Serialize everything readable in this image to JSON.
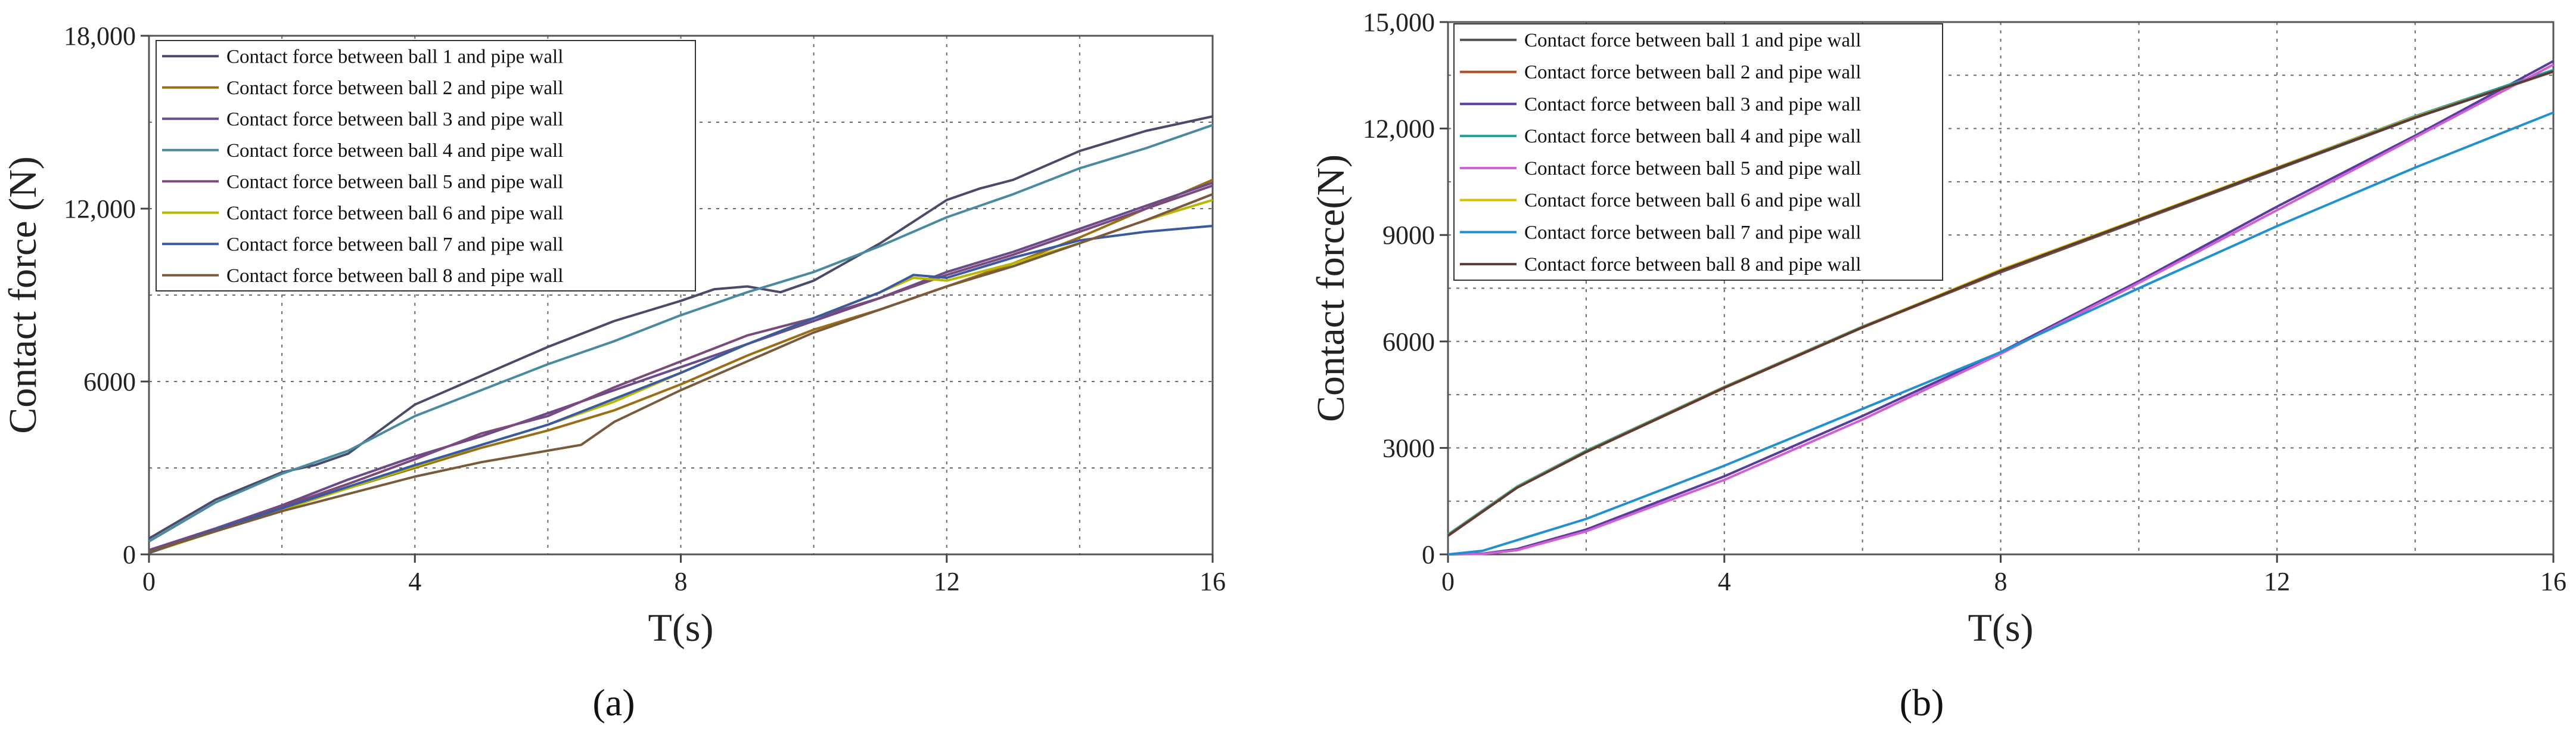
{
  "chart_data": [
    {
      "panel_label": "(a)",
      "type": "line",
      "xlabel": "T(s)",
      "ylabel": "Contact force (N)",
      "xlim": [
        0,
        16
      ],
      "ylim": [
        0,
        18000
      ],
      "xticks": [
        "0",
        "4",
        "8",
        "12",
        "16"
      ],
      "yticks": [
        "0",
        "6000",
        "12,000",
        "18,000"
      ],
      "xgrid": [
        2,
        4,
        6,
        8,
        10,
        12,
        14
      ],
      "ygrid": [
        3000,
        6000,
        9000,
        12000,
        15000
      ],
      "grid": true,
      "legend_position": "top-left",
      "series": [
        {
          "name": "Contact force between ball 1 and pipe wall",
          "color": "#4a4a6a",
          "x": [
            0,
            1,
            2,
            2.5,
            3,
            4,
            5,
            6,
            7,
            8,
            8.5,
            9,
            9.5,
            10,
            11,
            12,
            12.5,
            13,
            14,
            15,
            16
          ],
          "y": [
            550,
            1900,
            2850,
            3100,
            3500,
            5200,
            6200,
            7200,
            8100,
            8800,
            9200,
            9300,
            9100,
            9500,
            10800,
            12300,
            12700,
            13000,
            14000,
            14700,
            15200
          ]
        },
        {
          "name": "Contact force between ball 2 and pipe wall",
          "color": "#9a6e14",
          "x": [
            0,
            1,
            2,
            3,
            4,
            5,
            6,
            7,
            8,
            9,
            10,
            11,
            12,
            13,
            14,
            15,
            16
          ],
          "y": [
            100,
            850,
            1600,
            2300,
            3000,
            3700,
            4300,
            5000,
            5900,
            6900,
            7800,
            8500,
            9300,
            10100,
            11000,
            12000,
            13000
          ]
        },
        {
          "name": "Contact force between ball 3 and pipe wall",
          "color": "#6a4a8a",
          "x": [
            0,
            1,
            2,
            3,
            4,
            5,
            6,
            7,
            8,
            9,
            10,
            11,
            12,
            13,
            14,
            15,
            16
          ],
          "y": [
            150,
            900,
            1700,
            2600,
            3400,
            4100,
            4900,
            5700,
            6500,
            7300,
            8100,
            8900,
            9800,
            10500,
            11300,
            12100,
            12900
          ]
        },
        {
          "name": "Contact force between ball 4 and pipe wall",
          "color": "#4a8aa0",
          "x": [
            0,
            1,
            2,
            3,
            4,
            5,
            6,
            7,
            8,
            9,
            10,
            11,
            12,
            13,
            14,
            15,
            16
          ],
          "y": [
            450,
            1800,
            2800,
            3600,
            4800,
            5700,
            6600,
            7400,
            8300,
            9100,
            9800,
            10700,
            11700,
            12500,
            13400,
            14100,
            14900
          ]
        },
        {
          "name": "Contact force between ball 5 and pipe wall",
          "color": "#7a4a7a",
          "x": [
            0,
            1,
            2,
            3,
            4,
            5,
            6,
            7,
            8,
            9,
            10,
            11,
            12,
            13,
            14,
            15,
            16
          ],
          "y": [
            100,
            850,
            1650,
            2450,
            3300,
            4200,
            4800,
            5800,
            6700,
            7600,
            8200,
            8900,
            9700,
            10400,
            11200,
            12000,
            12800
          ]
        },
        {
          "name": "Contact force between ball 6 and pipe wall",
          "color": "#b8b800",
          "x": [
            0,
            1,
            2,
            3,
            4,
            5,
            6,
            7,
            8,
            9,
            10,
            11,
            11.5,
            12,
            13,
            14,
            15,
            16
          ],
          "y": [
            50,
            800,
            1550,
            2300,
            3050,
            3800,
            4500,
            5300,
            6300,
            7300,
            8200,
            9100,
            9600,
            9500,
            10100,
            10800,
            11600,
            12300
          ]
        },
        {
          "name": "Contact force between ball 7 and pipe wall",
          "color": "#3a5aa0",
          "x": [
            0,
            1,
            2,
            3,
            4,
            5,
            6,
            7,
            8,
            9,
            10,
            11,
            11.5,
            12,
            13,
            14,
            15,
            16
          ],
          "y": [
            50,
            850,
            1600,
            2350,
            3100,
            3800,
            4500,
            5400,
            6300,
            7300,
            8200,
            9100,
            9700,
            9600,
            10300,
            10900,
            11200,
            11400
          ]
        },
        {
          "name": "Contact force between ball 8 and pipe wall",
          "color": "#7a5a3a",
          "x": [
            0,
            1,
            2,
            3,
            4,
            5,
            6,
            6.5,
            7,
            8,
            9,
            10,
            11,
            12,
            13,
            14,
            15,
            16
          ],
          "y": [
            80,
            800,
            1500,
            2100,
            2700,
            3200,
            3600,
            3800,
            4600,
            5700,
            6700,
            7700,
            8500,
            9300,
            10000,
            10800,
            11600,
            12500
          ]
        }
      ]
    },
    {
      "panel_label": "(b)",
      "type": "line",
      "xlabel": "T(s)",
      "ylabel": "Contact force(N)",
      "xlim": [
        0,
        16
      ],
      "ylim": [
        0,
        15000
      ],
      "xticks": [
        "0",
        "4",
        "8",
        "12",
        "16"
      ],
      "yticks": [
        "0",
        "3000",
        "6000",
        "9000",
        "12,000",
        "15,000"
      ],
      "xgrid": [
        2,
        4,
        6,
        8,
        10,
        12,
        14
      ],
      "ygrid": [
        1500,
        3000,
        4500,
        6000,
        7500,
        9000,
        10500,
        12000,
        13500
      ],
      "grid": true,
      "legend_position": "top-left",
      "series": [
        {
          "name": "Contact force between ball 1 and pipe wall",
          "color": "#555555",
          "x": [
            0,
            1,
            2,
            4,
            6,
            8,
            10,
            12,
            14,
            16
          ],
          "y": [
            550,
            1900,
            2900,
            4700,
            6400,
            7950,
            9400,
            10850,
            12300,
            13600
          ]
        },
        {
          "name": "Contact force between ball 2 and pipe wall",
          "color": "#b04a20",
          "x": [
            0,
            1,
            2,
            4,
            6,
            8,
            10,
            12,
            14,
            16
          ],
          "y": [
            520,
            1880,
            2880,
            4690,
            6390,
            7980,
            9420,
            10880,
            12320,
            13620
          ]
        },
        {
          "name": "Contact force between ball 3 and pipe wall",
          "color": "#5a3aa0",
          "x": [
            0,
            0.5,
            1,
            2,
            4,
            6,
            8,
            10,
            12,
            14,
            16
          ],
          "y": [
            0,
            20,
            150,
            700,
            2200,
            3900,
            5700,
            7700,
            9800,
            11800,
            13900
          ]
        },
        {
          "name": "Contact force between ball 4 and pipe wall",
          "color": "#20a0a0",
          "x": [
            0,
            1,
            2,
            4,
            6,
            8,
            10,
            12,
            14,
            16
          ],
          "y": [
            560,
            1910,
            2920,
            4720,
            6420,
            8000,
            9440,
            10900,
            12350,
            13650
          ]
        },
        {
          "name": "Contact force between ball 5 and pipe wall",
          "color": "#d060d0",
          "x": [
            0,
            0.5,
            1,
            2,
            4,
            6,
            8,
            10,
            12,
            14,
            16
          ],
          "y": [
            0,
            10,
            120,
            650,
            2100,
            3800,
            5650,
            7650,
            9700,
            11750,
            13800
          ]
        },
        {
          "name": "Contact force between ball 6 and pipe wall",
          "color": "#d8c000",
          "x": [
            0,
            1,
            2,
            4,
            6,
            8,
            10,
            12,
            14,
            16
          ],
          "y": [
            540,
            1890,
            2900,
            4710,
            6410,
            8020,
            9450,
            10900,
            12330,
            13600
          ]
        },
        {
          "name": "Contact force between ball 7 and pipe wall",
          "color": "#2090d0",
          "x": [
            0,
            0.5,
            1,
            2,
            4,
            6,
            8,
            10,
            12,
            14,
            16
          ],
          "y": [
            0,
            100,
            400,
            1000,
            2500,
            4100,
            5700,
            7500,
            9250,
            10900,
            12450
          ]
        },
        {
          "name": "Contact force between ball 8 and pipe wall",
          "color": "#5a3a3a",
          "x": [
            0,
            1,
            2,
            4,
            6,
            8,
            10,
            12,
            14,
            16
          ],
          "y": [
            530,
            1880,
            2890,
            4700,
            6400,
            7990,
            9430,
            10880,
            12310,
            13610
          ]
        }
      ]
    }
  ]
}
